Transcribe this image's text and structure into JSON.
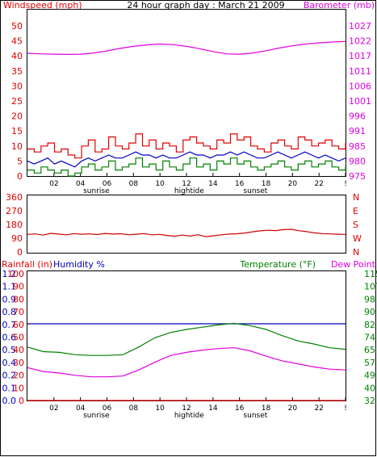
{
  "title": "24 hour graph day : March 21 2009",
  "colors": {
    "wind": "#e00000",
    "gust_green": "#008000",
    "avg_blue": "#0000c0",
    "barometer": "#e000e0",
    "direction": "#d00000",
    "rain": "#e00000",
    "humidity": "#0000c0",
    "temperature": "#008000",
    "dewpoint": "#e000e0"
  },
  "x_axis": {
    "tick_labels": [
      "02",
      "04",
      "06",
      "08",
      "10",
      "12",
      "14",
      "16",
      "18",
      "20",
      "22",
      "!"
    ],
    "events": [
      "sunrise",
      "hightide",
      "sunset"
    ]
  },
  "chart_data": [
    {
      "type": "line",
      "title": "",
      "ylabel": "Windspeed (mph)",
      "ylabel_right": "Barometer (mb)",
      "y_ticks": [
        "0",
        "5",
        "10",
        "15",
        "20",
        "25",
        "30",
        "35",
        "40",
        "45",
        "50"
      ],
      "y_ticks_right": [
        "975",
        "980",
        "985",
        "991",
        "996",
        "1001",
        "1006",
        "1011",
        "1017",
        "1022",
        "1027"
      ],
      "ylim": [
        0,
        50
      ],
      "ylim_right": [
        975,
        1027
      ],
      "series": [
        {
          "name": "",
          "color": "#e00000",
          "values": [
            9,
            8,
            10,
            11,
            8,
            9,
            7,
            6,
            10,
            12,
            8,
            9,
            13,
            10,
            9,
            11,
            14,
            10,
            12,
            9,
            11,
            10,
            8,
            12,
            13,
            11,
            10,
            9,
            12,
            11,
            14,
            12,
            13,
            10,
            9,
            8,
            11,
            12,
            10,
            9,
            13,
            12,
            10,
            11,
            12,
            10,
            9,
            11
          ]
        },
        {
          "name": "",
          "color": "#0000c0",
          "values": [
            5,
            4,
            5,
            6,
            4,
            5,
            4,
            3,
            5,
            6,
            5,
            6,
            7,
            6,
            6,
            7,
            8,
            7,
            7,
            6,
            7,
            6,
            6,
            7,
            8,
            7,
            7,
            6,
            7,
            7,
            8,
            7,
            8,
            7,
            6,
            6,
            7,
            8,
            7,
            6,
            7,
            8,
            7,
            6,
            7,
            6,
            5,
            6
          ]
        },
        {
          "name": "",
          "color": "#008000",
          "values": [
            2,
            1,
            3,
            2,
            1,
            2,
            0,
            1,
            3,
            4,
            2,
            3,
            5,
            2,
            3,
            4,
            6,
            3,
            4,
            2,
            5,
            3,
            2,
            4,
            6,
            3,
            4,
            2,
            5,
            4,
            6,
            4,
            5,
            3,
            2,
            3,
            4,
            5,
            3,
            2,
            4,
            5,
            3,
            4,
            5,
            3,
            2,
            3
          ]
        },
        {
          "name": "",
          "color": "#e000e0",
          "values": [
            1017.5,
            1017.3,
            1017.2,
            1017.1,
            1017.2,
            1017.6,
            1018.3,
            1019.2,
            1019.9,
            1020.4,
            1020.7,
            1020.5,
            1019.9,
            1019.1,
            1018.1,
            1017.3,
            1017.2,
            1017.6,
            1018.4,
            1019.3,
            1020.1,
            1020.7,
            1021.1,
            1021.4,
            1021.6
          ]
        }
      ]
    },
    {
      "type": "line",
      "title": "",
      "ylabel": "",
      "y_ticks": [
        "0",
        "90",
        "180",
        "270",
        "360"
      ],
      "y_ticks_right": [
        "N",
        "W",
        "S",
        "E",
        "N"
      ],
      "ylim": [
        0,
        360
      ],
      "series": [
        {
          "name": "",
          "color": "#d00000",
          "values": [
            115,
            118,
            110,
            122,
            117,
            112,
            120,
            116,
            118,
            114,
            121,
            117,
            119,
            113,
            116,
            120,
            112,
            115,
            108,
            103,
            110,
            104,
            113,
            100,
            106,
            112,
            117,
            119,
            124,
            132,
            138,
            142,
            140,
            146,
            148,
            139,
            133,
            125,
            120,
            118,
            116,
            115
          ]
        }
      ]
    },
    {
      "type": "line",
      "title": "",
      "ylabel": "Rainfall (in)",
      "ylabel2": "Humidity %",
      "ylabel_right": "Temperature (°F)",
      "ylabel_right2": "Dew Point",
      "y_ticks": [
        "0",
        "10",
        "20",
        "30",
        "40",
        "50",
        "60",
        "70",
        "80",
        "90",
        "100"
      ],
      "y_ticks_rain": [
        "0.0",
        "0.1",
        "0.2",
        "0.4",
        "0.5",
        "0.6",
        "0.7",
        "0.8",
        "0.9",
        "1.1",
        "1.2"
      ],
      "y_ticks_right": [
        "32",
        "40",
        "49",
        "57",
        "65",
        "74",
        "82",
        "90",
        "98",
        "107",
        "115"
      ],
      "ylim": [
        0,
        100
      ],
      "ylim_right": [
        32,
        115
      ],
      "series": [
        {
          "name": "",
          "color": "#e00000",
          "values": [
            0,
            0,
            0,
            0,
            0,
            0,
            0,
            0,
            0,
            0,
            0,
            0,
            0,
            0
          ]
        },
        {
          "name": "",
          "color": "#0000c0",
          "values": [
            60.5,
            60.5,
            60.5,
            60.5,
            60.5,
            60.5,
            60.5,
            60.5,
            60.5,
            60.5,
            60.5,
            60.5,
            60.5,
            60.5
          ]
        },
        {
          "name": "",
          "color": "#008000",
          "values": [
            67,
            64,
            63.5,
            62,
            61.5,
            61.5,
            62,
            67,
            73,
            76.5,
            78.5,
            80,
            81.5,
            82.5,
            81,
            78.5,
            74.5,
            71,
            69,
            66.5,
            65.5
          ]
        },
        {
          "name": "",
          "color": "#e000e0",
          "values": [
            53.5,
            51,
            50,
            48.5,
            47.5,
            47.5,
            48,
            52,
            57,
            61.5,
            63.5,
            65,
            66,
            66.5,
            64.5,
            61,
            58,
            56,
            54,
            52.5,
            52
          ]
        }
      ]
    }
  ]
}
